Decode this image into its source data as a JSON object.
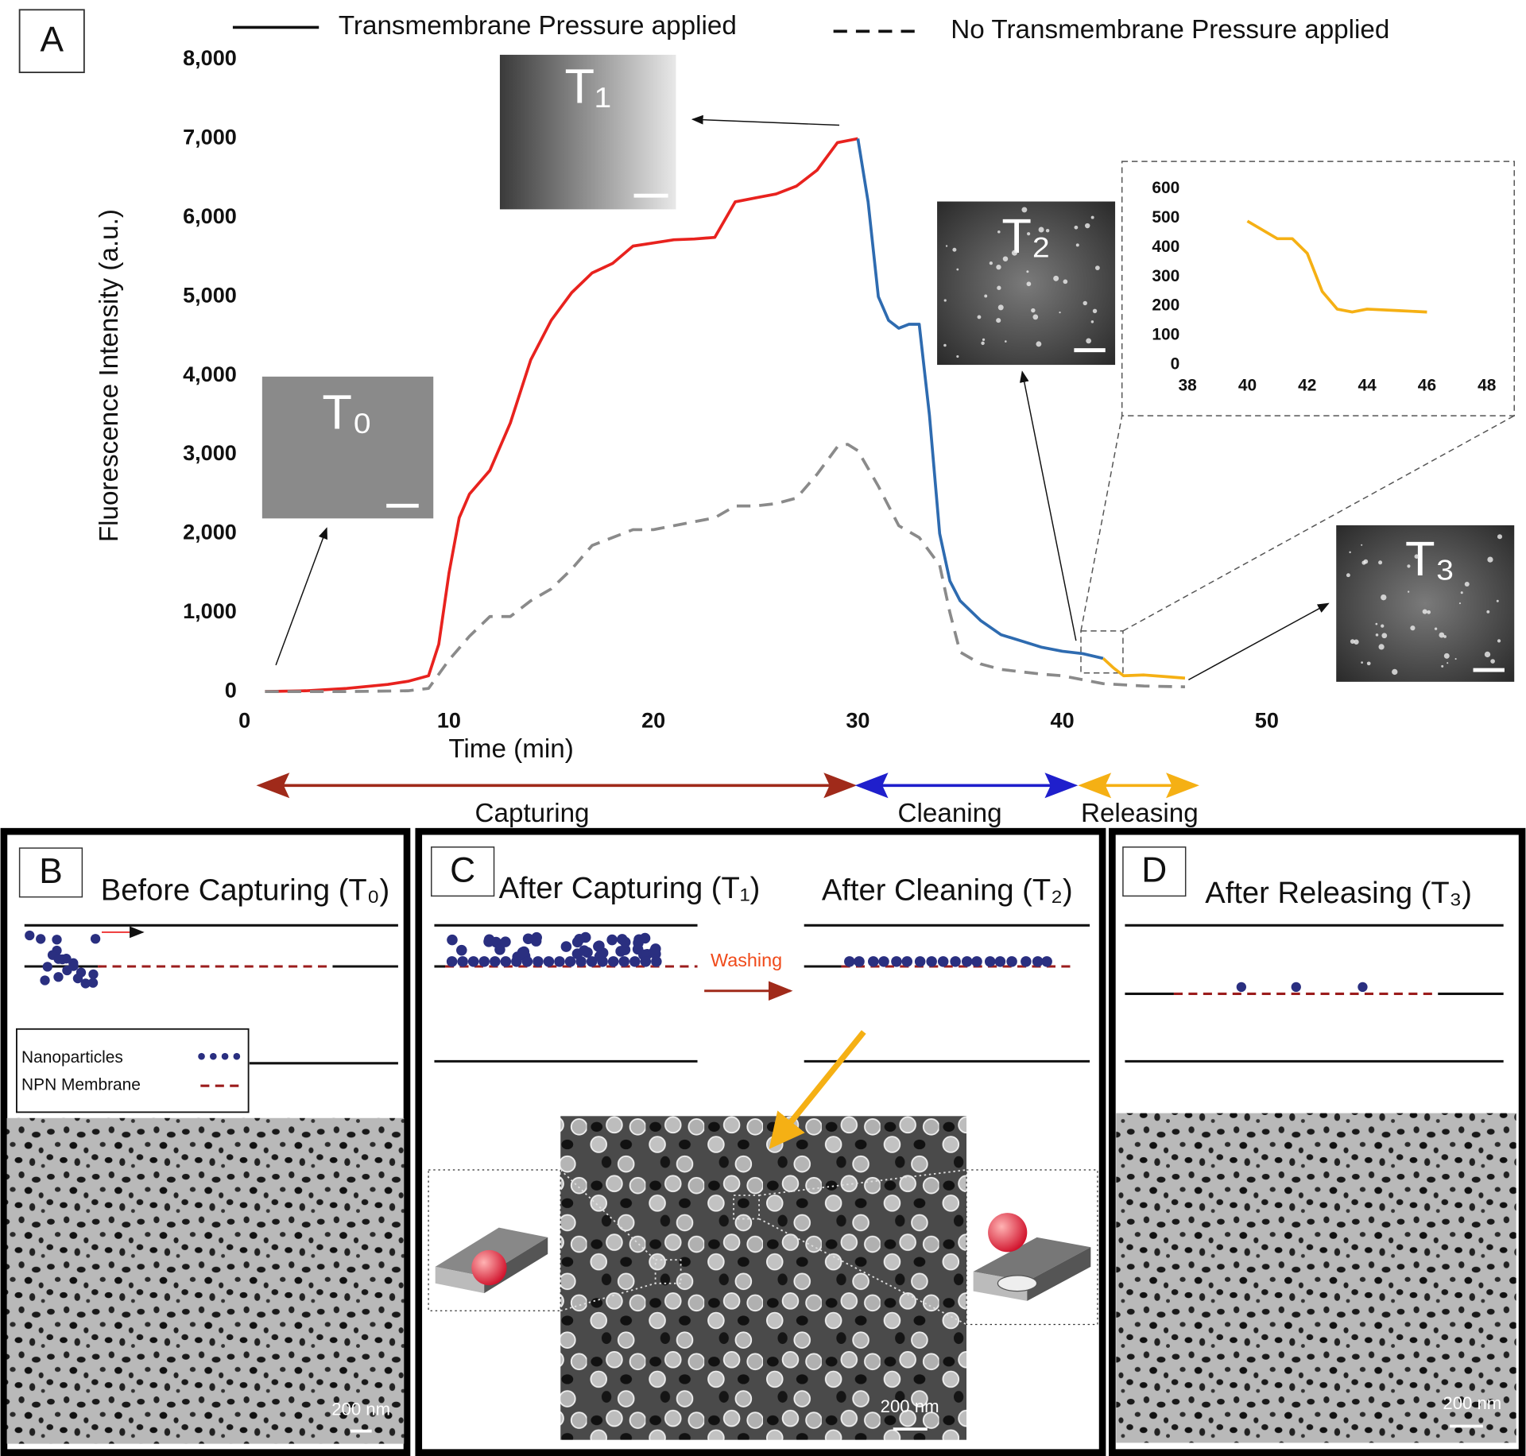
{
  "panel_a": {
    "label": "A",
    "images": [
      "T₀",
      "T₁",
      "T₂",
      "T₃"
    ],
    "phases": [
      "Capturing",
      "Cleaning",
      "Releasing"
    ]
  },
  "chart_data": [
    {
      "type": "line",
      "x_label": "Time (min)",
      "y_label": "Fluorescence Intensity (a.u.)",
      "xlim": [
        0,
        50
      ],
      "xticks": [
        0,
        10,
        20,
        30,
        40,
        50
      ],
      "ylim": [
        0,
        8000
      ],
      "yticks": [
        0,
        {
          "value": 1000,
          "label": "1,000"
        },
        {
          "value": 2000,
          "label": "2,000"
        },
        {
          "value": 3000,
          "label": "3,000"
        },
        {
          "value": 4000,
          "label": "4,000"
        },
        {
          "value": 5000,
          "label": "5,000"
        },
        {
          "value": 6000,
          "label": "6,000"
        },
        {
          "value": 7000,
          "label": "7,000"
        },
        {
          "value": 8000,
          "label": "8,000"
        }
      ],
      "legend_position": "top",
      "legend_color": "#111111",
      "series": [
        {
          "name": "Transmembrane Pressure applied",
          "color": "#e8221e",
          "dashed": false,
          "x": [
            1,
            3,
            5,
            7,
            8,
            9,
            9.5,
            10,
            10.5,
            11,
            12,
            13,
            14,
            15,
            16,
            17,
            18,
            19,
            20,
            21,
            22,
            23,
            24,
            25,
            26,
            27,
            28,
            29,
            30
          ],
          "values": [
            0,
            10,
            40,
            90,
            130,
            200,
            600,
            1500,
            2200,
            2500,
            2800,
            3400,
            4200,
            4700,
            5050,
            5300,
            5420,
            5640,
            5680,
            5720,
            5730,
            5750,
            6200,
            6250,
            6300,
            6400,
            6600,
            6950,
            7000
          ]
        },
        {
          "color": "#2e6bb0",
          "dashed": false,
          "x": [
            30,
            30.5,
            31,
            31.5,
            32,
            32.5,
            33,
            33.5,
            34,
            34.5,
            35,
            36,
            37,
            38,
            39,
            40,
            41,
            42
          ],
          "values": [
            7000,
            6200,
            5000,
            4700,
            4600,
            4650,
            4650,
            3500,
            2000,
            1400,
            1150,
            900,
            720,
            640,
            560,
            510,
            480,
            420
          ]
        },
        {
          "color": "#f5b014",
          "dashed": false,
          "x": [
            42,
            42.5,
            43,
            44,
            45,
            46
          ],
          "values": [
            420,
            300,
            200,
            210,
            190,
            170
          ]
        },
        {
          "name": "No Transmembrane Pressure applied",
          "color": "#8a8a8a",
          "dashed": true,
          "x": [
            1,
            5,
            8,
            9,
            10,
            11,
            12,
            13,
            14,
            15,
            16,
            17,
            18,
            19,
            20,
            21,
            22,
            23,
            24,
            25,
            26,
            27,
            28,
            29,
            29.5,
            30,
            31,
            32,
            33,
            34,
            34.5,
            35,
            36,
            37,
            38,
            39,
            40,
            41,
            42,
            44,
            46
          ],
          "values": [
            0,
            0,
            10,
            40,
            400,
            700,
            950,
            950,
            1150,
            1300,
            1550,
            1850,
            1950,
            2050,
            2050,
            2100,
            2150,
            2200,
            2350,
            2350,
            2380,
            2450,
            2750,
            3100,
            3130,
            3050,
            2600,
            2100,
            1950,
            1600,
            1000,
            500,
            350,
            280,
            250,
            220,
            200,
            150,
            100,
            70,
            60
          ]
        }
      ]
    },
    {
      "type": "line",
      "xlim": [
        38,
        48
      ],
      "xticks": [
        38,
        40,
        42,
        44,
        46,
        48
      ],
      "ylim": [
        0,
        600
      ],
      "yticks": [
        0,
        100,
        200,
        300,
        400,
        500,
        600
      ],
      "series": [
        {
          "color": "#f5b014",
          "dashed": false,
          "x": [
            40,
            41,
            41.5,
            42,
            42.5,
            43,
            43.5,
            44,
            45,
            46
          ],
          "values": [
            490,
            430,
            430,
            380,
            250,
            190,
            180,
            190,
            185,
            180
          ]
        }
      ]
    }
  ],
  "panels": [
    {
      "label": "B",
      "title": "Before Capturing (T₀)",
      "legend": [
        "Nanoparticles",
        "NPN Membrane"
      ],
      "scale_bar": "200 nm"
    },
    {
      "label": "C",
      "titles": [
        "After Capturing (T₁)",
        "After Cleaning (T₂)"
      ],
      "arrow_label": "Washing",
      "scale_bar": "200 nm"
    },
    {
      "label": "D",
      "title": "After Releasing (T₃)",
      "scale_bar": "200 nm"
    }
  ]
}
